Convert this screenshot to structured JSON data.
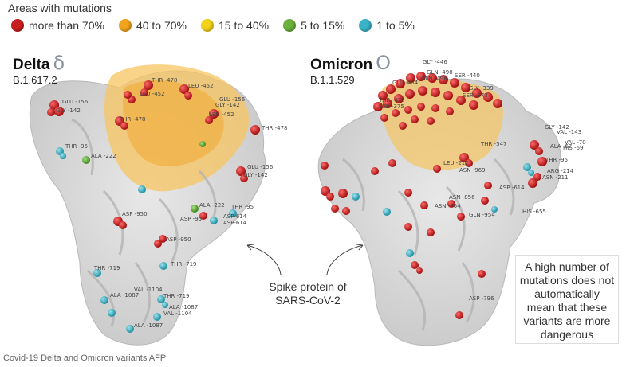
{
  "legend": {
    "title": "Areas with mutations",
    "items": [
      {
        "label": "more than 70%",
        "color": "#c91f1f"
      },
      {
        "label": "40 to 70%",
        "color": "#f2a51c"
      },
      {
        "label": "15 to 40%",
        "color": "#f3d21a"
      },
      {
        "label": "5 to 15%",
        "color": "#6bb13e"
      },
      {
        "label": "1 to 5%",
        "color": "#3ab5c8"
      }
    ]
  },
  "variants": {
    "delta": {
      "name": "Delta",
      "symbol": "δ",
      "lineage": "B.1.617.2",
      "residues": [
        "GLU -156",
        "GLY -142",
        "THR -478",
        "LEU -452",
        "LEU -452",
        "THR -478",
        "GLU -156",
        "GLY -142",
        "LEU -452",
        "THR -478",
        "THR -95",
        "ALA -222",
        "GLU -156",
        "GLY -142",
        "ALA -222",
        "ASP -950",
        "ASP -95",
        "THR -95",
        "ASP-614",
        "ASP-614",
        "ASP -950",
        "THR -719",
        "THR -719",
        "VAL -1104",
        "ALA -1087",
        "THR -719",
        "ALA -1087",
        "VAL -1104",
        "ALA -1087"
      ]
    },
    "omicron": {
      "name": "Omicron",
      "symbol": "O",
      "lineage": "B.1.1.529",
      "residues": [
        "GLY -446",
        "GLN -498",
        "GLN -496",
        "SER -440",
        "GLU -484",
        "GLY -339",
        "SER -373",
        "THR -478",
        "SER -375",
        "THR -547",
        "GLY -142",
        "VAL -143",
        "ALA -67",
        "VAL -70",
        "HIS -69",
        "THR -95",
        "ARG -214",
        "ASN -211",
        "LEU -212",
        "ASN -969",
        "ASP -614",
        "ASN -856",
        "ASN -764",
        "GLN -954",
        "HIS -655",
        "ASP -796"
      ]
    }
  },
  "center_label": "Spike protein of SARS-CoV-2",
  "note": "A high number of mutations does not automatically mean that these variants are more dangerous",
  "credit": "Covid-19 Delta and Omicron variants AFP"
}
